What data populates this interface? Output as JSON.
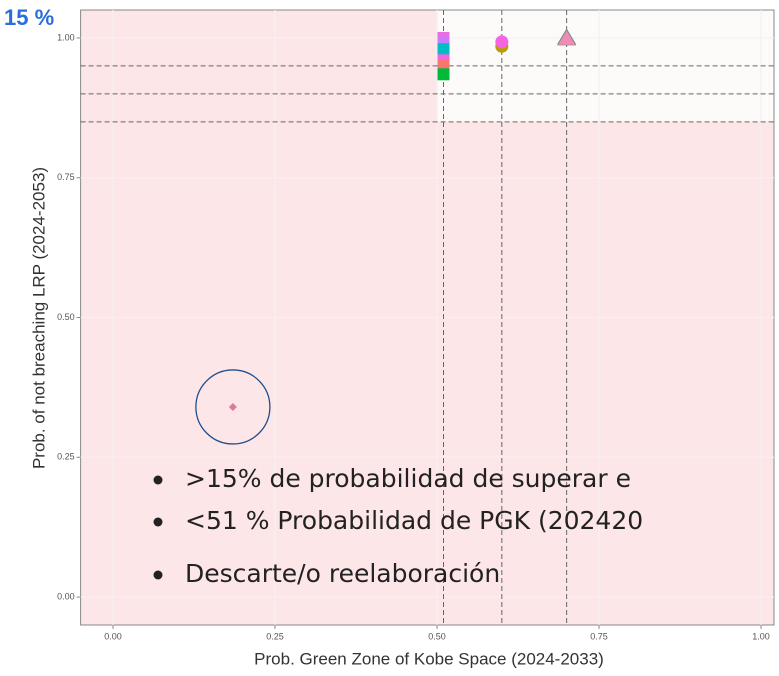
{
  "chart_data": {
    "type": "scatter",
    "corner_label": "15 %",
    "x_label": "Prob. Green Zone of Kobe Space (2024-2033)",
    "y_label": "Prob. of not breaching LRP (2024-2053)",
    "xlim": [
      -0.05,
      1.02
    ],
    "ylim": [
      -0.05,
      1.05
    ],
    "xticks": [
      {
        "value": 0,
        "label": "0.00"
      },
      {
        "value": 0.25,
        "label": "0.25"
      },
      {
        "value": 0.5,
        "label": "0.50"
      },
      {
        "value": 0.75,
        "label": "0.75"
      },
      {
        "value": 1,
        "label": "1.00"
      }
    ],
    "yticks": [
      {
        "value": 0,
        "label": "0.00"
      },
      {
        "value": 0.25,
        "label": "0.25"
      },
      {
        "value": 0.5,
        "label": "0.50"
      },
      {
        "value": 0.75,
        "label": "0.75"
      },
      {
        "value": 1,
        "label": "1.00"
      }
    ],
    "grid": true,
    "hlines": [
      0.95,
      0.9,
      0.85
    ],
    "vlines": [
      0.51,
      0.6,
      0.7
    ],
    "series": [
      {
        "color": "#e66ee6",
        "marker": "square",
        "x": [
          0.51
        ],
        "y": [
          1.0
        ]
      },
      {
        "color": "#c77cff",
        "marker": "square",
        "x": [
          0.51
        ],
        "y": [
          0.99
        ]
      },
      {
        "color": "#00bfc4",
        "marker": "square",
        "x": [
          0.51
        ],
        "y": [
          0.98
        ]
      },
      {
        "color": "#f564e3",
        "marker": "square",
        "x": [
          0.51
        ],
        "y": [
          0.96
        ]
      },
      {
        "color": "#f8766d",
        "marker": "square",
        "x": [
          0.51
        ],
        "y": [
          0.95
        ]
      },
      {
        "color": "#00ba38",
        "marker": "square",
        "x": [
          0.51
        ],
        "y": [
          0.935
        ]
      },
      {
        "color": "#b79f00",
        "marker": "circle",
        "x": [
          0.6
        ],
        "y": [
          0.985
        ]
      },
      {
        "color": "#f564e3",
        "marker": "circle",
        "x": [
          0.6
        ],
        "y": [
          0.993
        ]
      },
      {
        "color": "#00bfc4",
        "marker": "triangle",
        "x": [
          0.7
        ],
        "y": [
          1.0
        ]
      },
      {
        "color": "#f08cb4",
        "marker": "triangle",
        "x": [
          0.7
        ],
        "y": [
          0.998
        ]
      },
      {
        "color": "#e07a9a",
        "marker": "diamond",
        "x": [
          0.185
        ],
        "y": [
          0.34
        ]
      }
    ],
    "bullets": [
      ">15% de probabilidad de superar e",
      "<51 % Probabilidad de PGK (202420",
      "Descarte/o reelaboración"
    ]
  }
}
